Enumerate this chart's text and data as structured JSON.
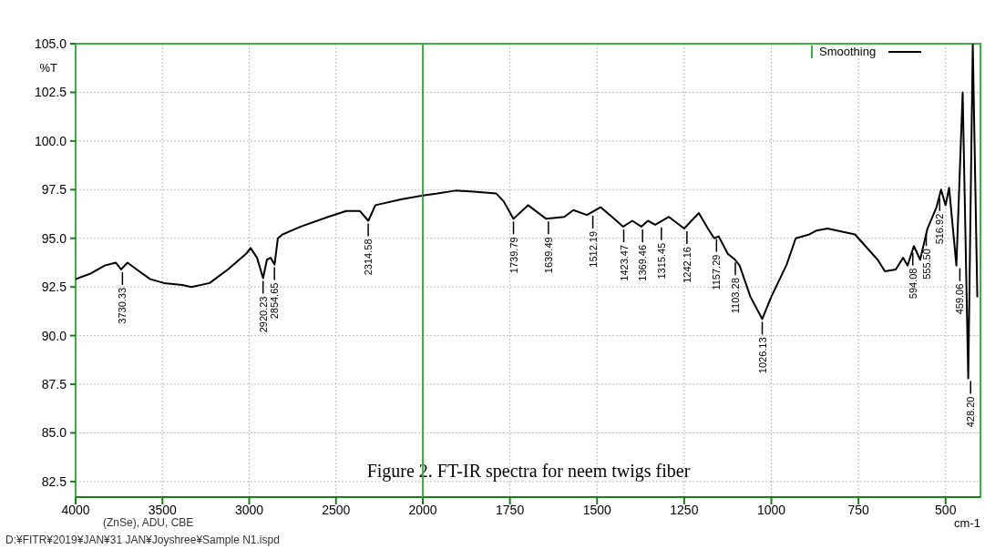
{
  "chart_data": [
    {
      "type": "line",
      "ylabel": "%T",
      "xlim": [
        4000,
        2000
      ],
      "ylim": [
        81.7,
        105
      ],
      "xticks": [
        4000,
        3500,
        3000,
        2500,
        2000
      ],
      "yticks": [
        {
          "value": 82.5,
          "label": "82.5"
        },
        {
          "value": 85,
          "label": "85.0"
        },
        {
          "value": 87.5,
          "label": "87.5"
        },
        {
          "value": 90,
          "label": "90.0"
        },
        {
          "value": 92.5,
          "label": "92.5"
        },
        {
          "value": 95,
          "label": "95.0"
        },
        {
          "value": 97.5,
          "label": "97.5"
        },
        {
          "value": 100,
          "label": "100.0"
        },
        {
          "value": 102.5,
          "label": "102.5"
        },
        {
          "value": 105,
          "label": "105.0"
        }
      ],
      "grid": true,
      "line_style": "solid",
      "series": [
        {
          "color": "#000000",
          "x": [
            4000,
            3911,
            3832,
            3769,
            3738,
            3701,
            3648,
            3570,
            3491,
            3386,
            3333,
            3228,
            3123,
            3018,
            2992,
            2955,
            2920,
            2898,
            2877,
            2854,
            2835,
            2808,
            2703,
            2546,
            2441,
            2362,
            2314,
            2273,
            2126,
            2000
          ],
          "values": [
            92.9,
            93.2,
            93.6,
            93.75,
            93.4,
            93.75,
            93.4,
            92.9,
            92.7,
            92.6,
            92.5,
            92.7,
            93.4,
            94.2,
            94.5,
            94.0,
            92.95,
            93.9,
            94.0,
            93.65,
            95.0,
            95.2,
            95.6,
            96.1,
            96.4,
            96.4,
            95.9,
            96.7,
            97.0,
            97.2
          ]
        }
      ],
      "annotations": [
        "Figure 2. FT-IR spectra for neem twigs fiber",
        "(ZnSe), ADU, CBE",
        "D:¥FITR¥2019¥JAN¥31 JAN¥Joyshree¥Sample N1.ispd",
        {
          "text": "3730.33",
          "x": 3730.33,
          "y": 93.4
        },
        {
          "text": "2920.23",
          "x": 2920.23,
          "y": 92.95
        },
        {
          "text": "2854.65",
          "x": 2854.65,
          "y": 93.65
        },
        {
          "text": "2314.58",
          "x": 2314.58,
          "y": 95.9
        }
      ]
    },
    {
      "type": "line",
      "xlabel": "cm-1",
      "xlim": [
        2000,
        400
      ],
      "ylim": [
        81.7,
        105
      ],
      "xticks": [
        1750,
        1500,
        1250,
        1000,
        750,
        500
      ],
      "yticks": [
        82.5,
        85,
        87.5,
        90,
        92.5,
        95,
        97.5,
        100,
        102.5,
        105
      ],
      "tick_labels": "x",
      "grid": true,
      "legend": "top right",
      "line_style": "solid",
      "series": [
        {
          "name": "Smoothing",
          "color": "#000000",
          "x": [
            2000,
            1958,
            1906,
            1854,
            1789,
            1768,
            1740,
            1698,
            1646,
            1594,
            1568,
            1529,
            1490,
            1451,
            1425,
            1399,
            1373,
            1354,
            1333,
            1294,
            1250,
            1208,
            1182,
            1164,
            1151,
            1125,
            1104,
            1091,
            1060,
            1026,
            1000,
            956,
            930,
            891,
            870,
            839,
            760,
            695,
            674,
            643,
            622,
            609,
            591,
            573,
            552,
            526,
            513,
            500,
            490,
            469,
            451,
            435,
            422,
            409
          ],
          "values": [
            97.2,
            97.3,
            97.45,
            97.4,
            97.3,
            96.9,
            96.0,
            96.7,
            96.0,
            96.1,
            96.45,
            96.2,
            96.6,
            96.0,
            95.6,
            95.9,
            95.6,
            95.9,
            95.7,
            96.1,
            95.5,
            96.3,
            95.5,
            95.0,
            95.1,
            94.2,
            93.9,
            93.6,
            92.0,
            90.85,
            92.0,
            93.65,
            95.0,
            95.2,
            95.4,
            95.5,
            95.2,
            93.9,
            93.3,
            93.4,
            94.0,
            93.6,
            94.6,
            93.9,
            95.5,
            96.6,
            97.5,
            96.7,
            97.6,
            93.6,
            102.5,
            87.8,
            105,
            92.0
          ]
        }
      ],
      "annotations": [
        {
          "text": "1739.79",
          "x": 1739.79,
          "y": 96.0
        },
        {
          "text": "1639.49",
          "x": 1639.49,
          "y": 96.0
        },
        {
          "text": "1512.19",
          "x": 1512.19,
          "y": 96.3
        },
        {
          "text": "1423.47",
          "x": 1423.47,
          "y": 95.6
        },
        {
          "text": "1369.46",
          "x": 1369.46,
          "y": 95.6
        },
        {
          "text": "1315.45",
          "x": 1315.45,
          "y": 95.7
        },
        {
          "text": "1242.16",
          "x": 1242.16,
          "y": 95.5
        },
        {
          "text": "1157.29",
          "x": 1157.29,
          "y": 95.1
        },
        {
          "text": "1103.28",
          "x": 1103.28,
          "y": 93.9
        },
        {
          "text": "1026.13",
          "x": 1026.13,
          "y": 90.85
        },
        {
          "text": "594.08",
          "x": 594.08,
          "y": 94.4
        },
        {
          "text": "555.50",
          "x": 555.5,
          "y": 95.4
        },
        {
          "text": "516.92",
          "x": 516.92,
          "y": 97.2
        },
        {
          "text": "459.06",
          "x": 459.06,
          "y": 93.6
        },
        {
          "text": "428.20",
          "x": 428.2,
          "y": 87.8
        }
      ]
    }
  ]
}
